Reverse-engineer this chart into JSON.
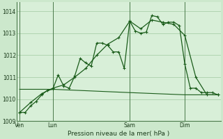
{
  "bg_color": "#cce8cc",
  "plot_bg_color": "#d8efd8",
  "grid_color": "#aacfaa",
  "line_color": "#1a5c1a",
  "marker_color": "#1a5c1a",
  "xlabel": "Pression niveau de la mer( hPa )",
  "ylim": [
    1009.0,
    1014.4
  ],
  "yticks": [
    1009,
    1010,
    1011,
    1012,
    1013,
    1014
  ],
  "xtick_labels": [
    "Ven",
    "Lun",
    "Sam",
    "Dim"
  ],
  "xtick_positions": [
    0,
    6,
    20,
    30
  ],
  "vlines_x": [
    0,
    6,
    20,
    30
  ],
  "n_points": 37,
  "series1_x": [
    0,
    1,
    2,
    3,
    4,
    5,
    6,
    7,
    8,
    9,
    10,
    11,
    12,
    13,
    14,
    15,
    16,
    17,
    18,
    19,
    20,
    21,
    22,
    23,
    24,
    25,
    26,
    27,
    28,
    29,
    30,
    31,
    32,
    33,
    34,
    35,
    36
  ],
  "series1_y": [
    1009.4,
    1009.4,
    1009.7,
    1009.9,
    1010.2,
    1010.4,
    1010.45,
    1011.1,
    1010.6,
    1010.5,
    1011.05,
    1011.85,
    1011.65,
    1011.5,
    1012.55,
    1012.55,
    1012.45,
    1012.15,
    1012.15,
    1011.4,
    1013.55,
    1013.1,
    1013.0,
    1013.05,
    1013.8,
    1013.75,
    1013.4,
    1013.5,
    1013.5,
    1013.35,
    1011.6,
    1010.5,
    1010.5,
    1010.3,
    1010.3,
    1010.3,
    1010.2
  ],
  "series2_x": [
    0,
    2,
    4,
    6,
    8,
    10,
    12,
    14,
    16,
    18,
    20,
    22,
    24,
    26,
    28,
    30,
    32,
    34,
    36
  ],
  "series2_y": [
    1009.4,
    1009.85,
    1010.25,
    1010.5,
    1010.65,
    1011.0,
    1011.4,
    1012.0,
    1012.5,
    1012.8,
    1013.55,
    1013.2,
    1013.6,
    1013.5,
    1013.4,
    1012.9,
    1011.0,
    1010.2,
    1010.2
  ],
  "series3_x": [
    0,
    6,
    20,
    30,
    36
  ],
  "series3_y": [
    1010.45,
    1010.45,
    1010.3,
    1010.2,
    1010.2
  ]
}
